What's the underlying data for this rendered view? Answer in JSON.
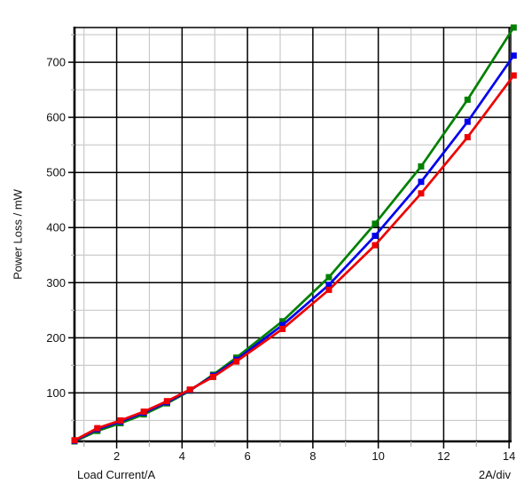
{
  "chart_data": {
    "type": "line",
    "title": "",
    "xlabel": "Load Current/A",
    "ylabel": "Power Loss / mW",
    "x_div_label": "2A/div",
    "xlim": [
      0.71,
      14.05
    ],
    "ylim": [
      12,
      763
    ],
    "x_major_ticks": [
      2,
      4,
      6,
      8,
      10,
      12,
      14
    ],
    "x_minor_ticks": [
      1,
      3,
      5,
      7,
      9,
      11,
      13
    ],
    "y_major_ticks": [
      100,
      200,
      300,
      400,
      500,
      600,
      700
    ],
    "y_minor_ticks": [
      50,
      150,
      250,
      350,
      450,
      550,
      650,
      750
    ],
    "grid": {
      "major_color": "#000000",
      "minor_color": "#c9c9c9"
    },
    "background": "#ffffff",
    "legend": "none",
    "marker_shape": "square",
    "x": [
      0.71,
      1.41,
      2.12,
      2.83,
      3.54,
      4.24,
      4.95,
      5.66,
      7.07,
      8.49,
      9.9,
      11.31,
      12.73,
      14.14
    ],
    "series": [
      {
        "name": "green-curve",
        "color": "#008000",
        "values": [
          12,
          31,
          45,
          61,
          81,
          104,
          133,
          164,
          230,
          310,
          407,
          511,
          632,
          763
        ]
      },
      {
        "name": "blue-curve",
        "color": "#0000ee",
        "values": [
          13,
          34,
          48,
          64,
          83,
          105,
          131,
          160,
          223,
          296,
          385,
          483,
          592,
          712
        ]
      },
      {
        "name": "red-curve",
        "color": "#ee0000",
        "values": [
          14,
          36,
          50,
          66,
          85,
          106,
          129,
          157,
          216,
          287,
          368,
          462,
          564,
          676
        ]
      }
    ]
  }
}
